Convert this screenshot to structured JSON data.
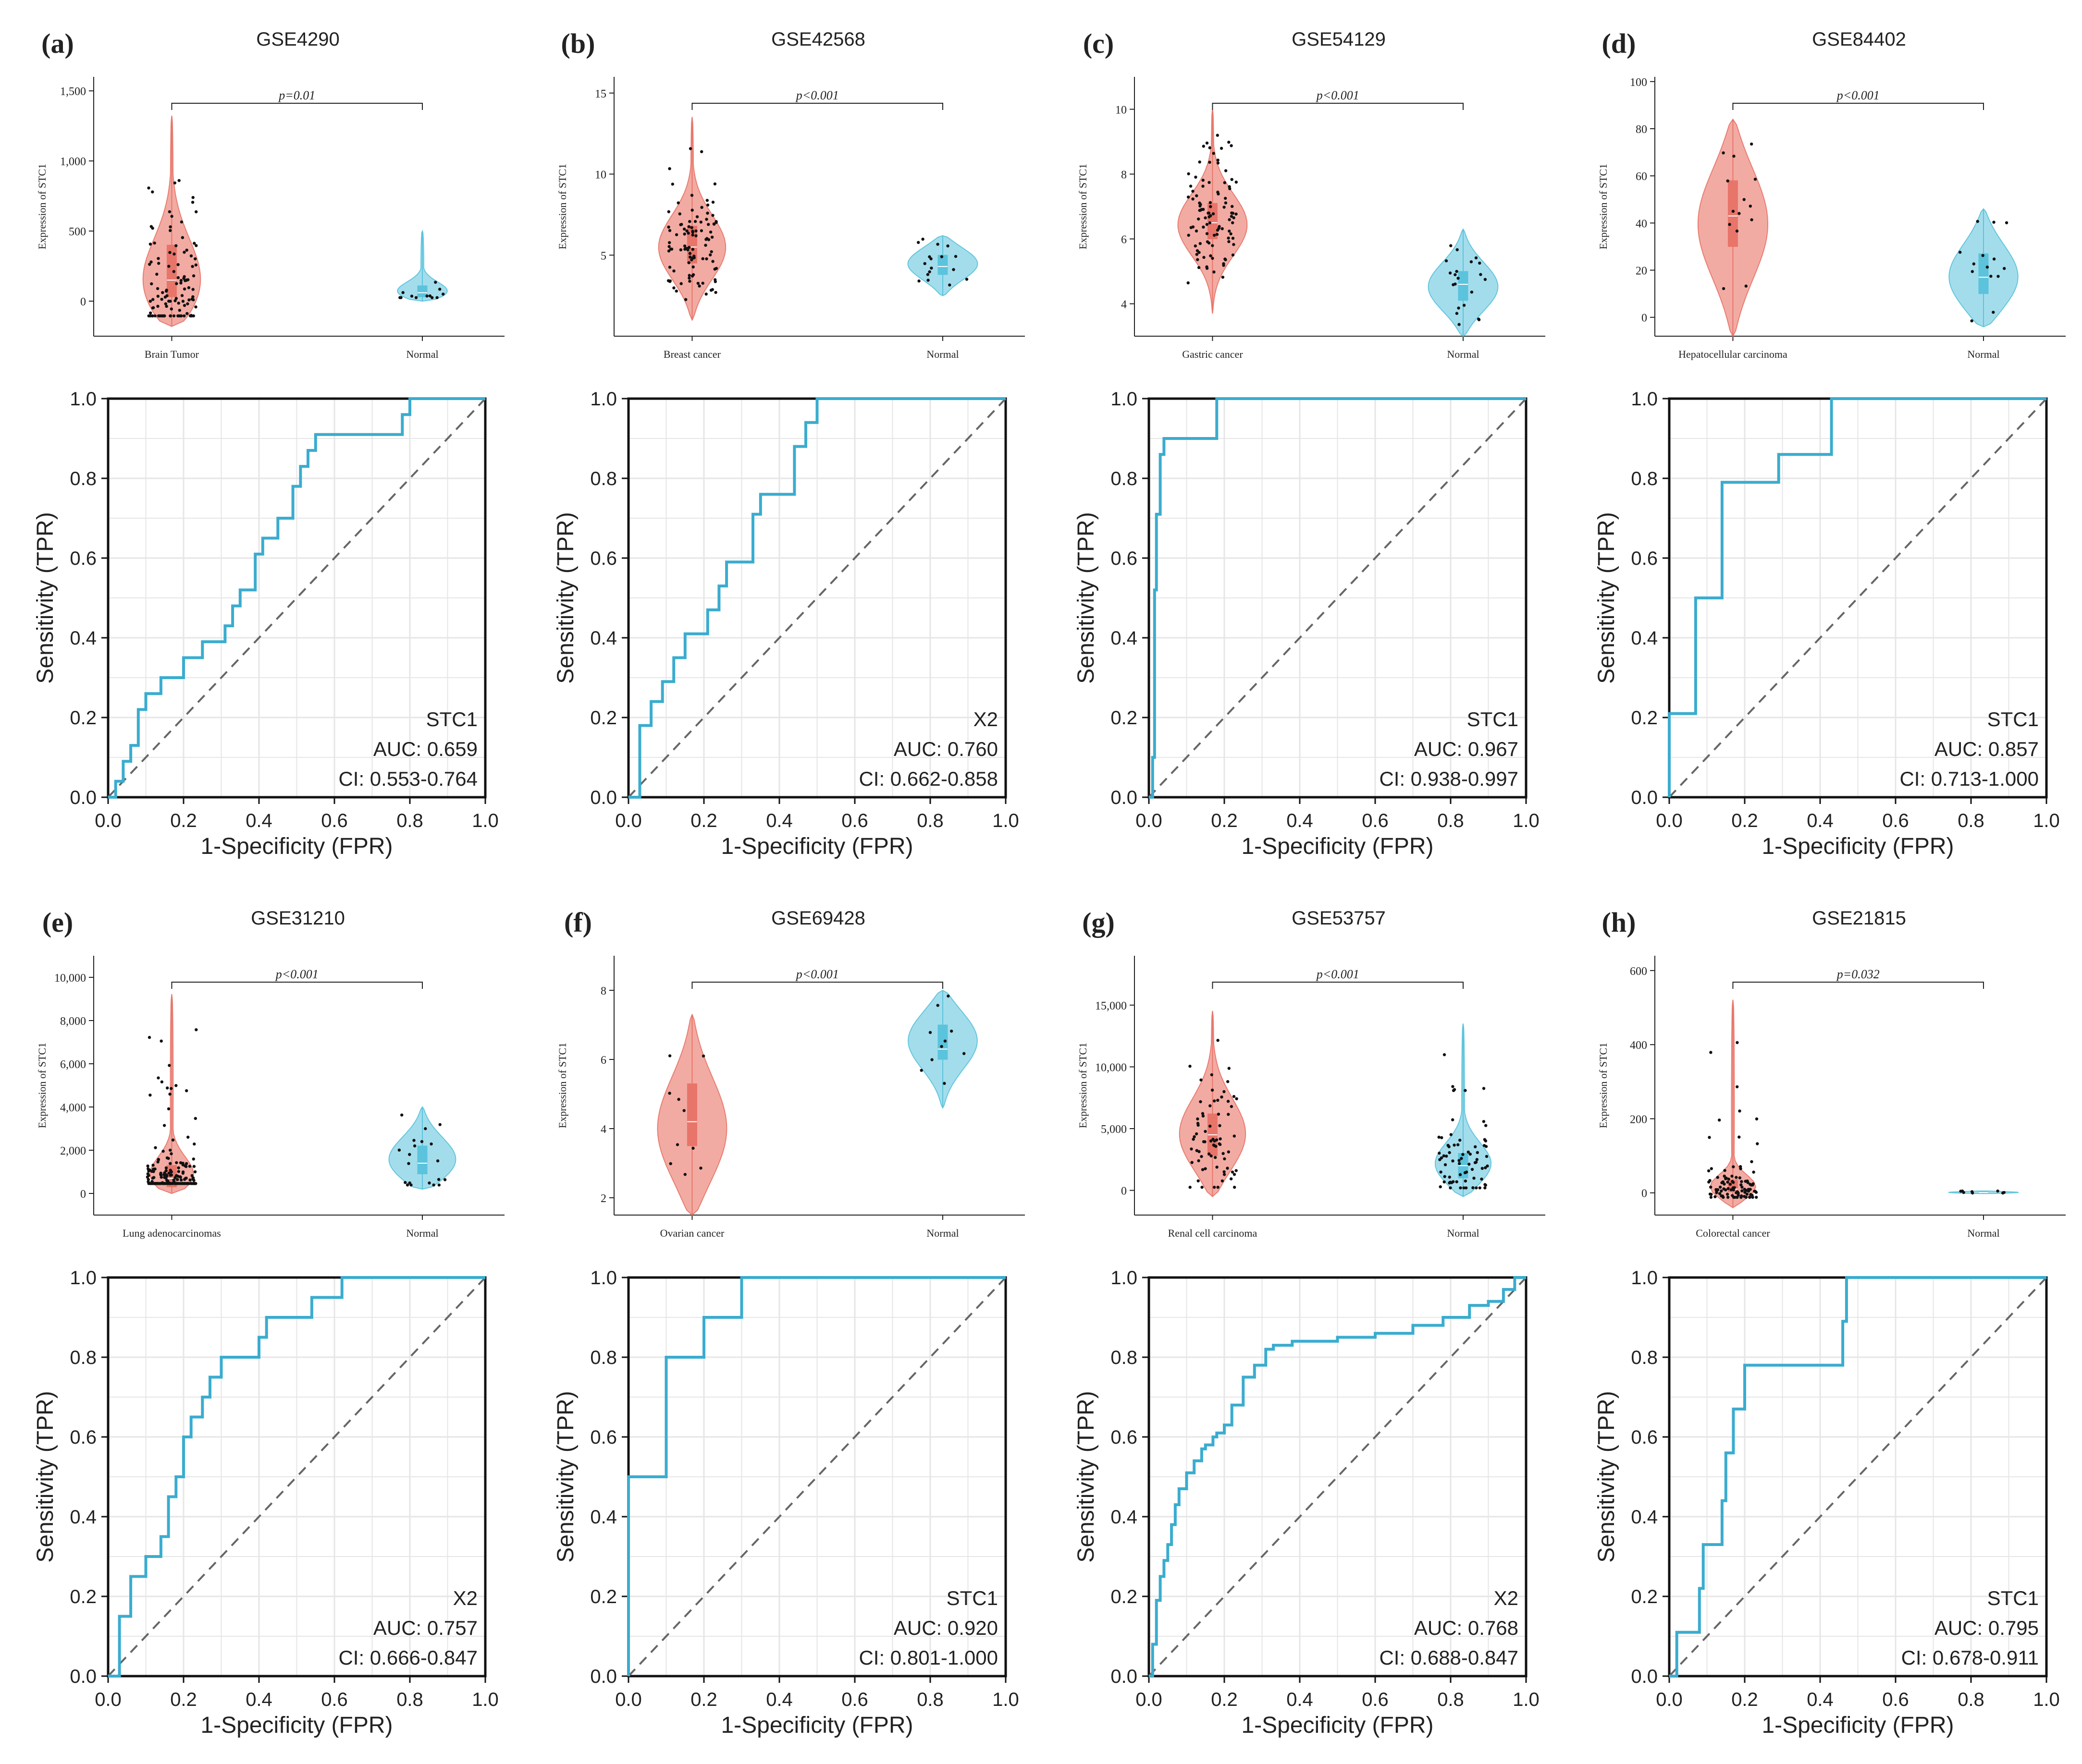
{
  "figure": {
    "colors": {
      "tumor": "#e8756a",
      "tumor_fill": "#f2a79f",
      "normal": "#5bc3dc",
      "normal_fill": "#9fdcec",
      "roc_line": "#3aaccf",
      "diagonal": "#666666",
      "axis": "#222222",
      "grid": "#e6e6e6"
    }
  },
  "chart_data": [
    {
      "panel": "(a)",
      "type": "violin",
      "title": "GSE4290",
      "ylabel": "Expression of STC1",
      "ylim": [
        -250,
        1600
      ],
      "yticks": [
        0,
        500,
        1000,
        1500
      ],
      "ytick_labels": [
        "0",
        "500",
        "1,000",
        "1,500"
      ],
      "categories": [
        "Brain Tumor",
        "Normal"
      ],
      "pvalue": "p=0.01",
      "violins": [
        {
          "group": "Brain Tumor",
          "min": -180,
          "max": 1320,
          "q1": 30,
          "median": 150,
          "q3": 400,
          "peak": 60,
          "n_points": 110
        },
        {
          "group": "Normal",
          "min": 0,
          "max": 500,
          "q1": 30,
          "median": 60,
          "q3": 110,
          "peak": 50,
          "n_points": 12
        }
      ]
    },
    {
      "panel": "(b)",
      "type": "violin",
      "title": "GSE42568",
      "ylabel": "Expression of STC1",
      "ylim": [
        0,
        16
      ],
      "yticks": [
        5,
        10,
        15
      ],
      "ytick_labels": [
        "5",
        "10",
        "15"
      ],
      "categories": [
        "Breast cancer",
        "Normal"
      ],
      "pvalue": "p<0.001",
      "violins": [
        {
          "group": "Breast cancer",
          "min": 1,
          "max": 13.5,
          "q1": 4.5,
          "median": 5.5,
          "q3": 6.8,
          "peak": 5.3,
          "n_points": 100
        },
        {
          "group": "Normal",
          "min": 2.5,
          "max": 6.2,
          "q1": 3.8,
          "median": 4.3,
          "q3": 5,
          "peak": 4.5,
          "n_points": 17
        }
      ]
    },
    {
      "panel": "(c)",
      "type": "violin",
      "title": "GSE54129",
      "ylabel": "Expression of STC1",
      "ylim": [
        3,
        11
      ],
      "yticks": [
        4,
        6,
        8,
        10
      ],
      "ytick_labels": [
        "4",
        "6",
        "8",
        "10"
      ],
      "categories": [
        "Gastric cancer",
        "Normal"
      ],
      "pvalue": "p<0.001",
      "violins": [
        {
          "group": "Gastric cancer",
          "min": 3.7,
          "max": 10,
          "q1": 6,
          "median": 6.5,
          "q3": 7.1,
          "peak": 6.4,
          "n_points": 100
        },
        {
          "group": "Normal",
          "min": 3,
          "max": 6.3,
          "q1": 4.1,
          "median": 4.6,
          "q3": 5,
          "peak": 4.5,
          "n_points": 21
        }
      ]
    },
    {
      "panel": "(d)",
      "type": "violin",
      "title": "GSE84402",
      "ylabel": "Expression of STC1",
      "ylim": [
        -8,
        102
      ],
      "yticks": [
        0,
        20,
        40,
        60,
        80,
        100
      ],
      "ytick_labels": [
        "0",
        "20",
        "40",
        "60",
        "80",
        "100"
      ],
      "categories": [
        "Hepatocellular carcinoma",
        "Normal"
      ],
      "pvalue": "p<0.001",
      "violins": [
        {
          "group": "Hepatocellular carcinoma",
          "min": -8,
          "max": 84,
          "q1": 30,
          "median": 43,
          "q3": 58,
          "peak": 40,
          "n_points": 14
        },
        {
          "group": "Normal",
          "min": -4,
          "max": 46,
          "q1": 10,
          "median": 17,
          "q3": 27,
          "peak": 16,
          "n_points": 14
        }
      ]
    },
    {
      "panel": "(e)",
      "type": "violin",
      "title": "GSE31210",
      "ylabel": "Expression of STC1",
      "ylim": [
        -1000,
        11000
      ],
      "yticks": [
        0,
        2000,
        4000,
        6000,
        8000,
        10000
      ],
      "ytick_labels": [
        "0",
        "2,000",
        "4,000",
        "6,000",
        "8,000",
        "10,000"
      ],
      "categories": [
        "Lung adenocarcinomas",
        "Normal"
      ],
      "pvalue": "p<0.001",
      "violins": [
        {
          "group": "Lung adenocarcinomas",
          "min": 0,
          "max": 9200,
          "q1": 300,
          "median": 700,
          "q3": 1300,
          "peak": 600,
          "n_points": 180
        },
        {
          "group": "Normal",
          "min": 200,
          "max": 4000,
          "q1": 900,
          "median": 1400,
          "q3": 2200,
          "peak": 1400,
          "n_points": 20
        }
      ]
    },
    {
      "panel": "(f)",
      "type": "violin",
      "title": "GSE69428",
      "ylabel": "Expression of STC1",
      "ylim": [
        1.5,
        9
      ],
      "yticks": [
        2,
        4,
        6,
        8
      ],
      "ytick_labels": [
        "2",
        "4",
        "6",
        "8"
      ],
      "categories": [
        "Ovarian cancer",
        "Normal"
      ],
      "pvalue": "p<0.001",
      "violins": [
        {
          "group": "Ovarian cancer",
          "min": 1.5,
          "max": 7.3,
          "q1": 3.5,
          "median": 4.2,
          "q3": 5.3,
          "peak": 3.9,
          "n_points": 10
        },
        {
          "group": "Normal",
          "min": 4.6,
          "max": 8,
          "q1": 6,
          "median": 6.3,
          "q3": 7,
          "peak": 6.6,
          "n_points": 10
        }
      ]
    },
    {
      "panel": "(g)",
      "type": "violin",
      "title": "GSE53757",
      "ylabel": "Expression of STC1",
      "ylim": [
        -2000,
        19000
      ],
      "yticks": [
        0,
        5000,
        10000,
        15000
      ],
      "ytick_labels": [
        "0",
        "5,000",
        "10,000",
        "15,000"
      ],
      "categories": [
        "Renal cell carcinoma",
        "Normal"
      ],
      "pvalue": "p<0.001",
      "violins": [
        {
          "group": "Renal cell carcinoma",
          "min": -500,
          "max": 14500,
          "q1": 2800,
          "median": 4500,
          "q3": 6200,
          "peak": 4200,
          "n_points": 72
        },
        {
          "group": "Normal",
          "min": -500,
          "max": 13500,
          "q1": 1000,
          "median": 2000,
          "q3": 3000,
          "peak": 1800,
          "n_points": 72
        }
      ]
    },
    {
      "panel": "(h)",
      "type": "violin",
      "title": "GSE21815",
      "ylabel": "Expression of STC1",
      "ylim": [
        -60,
        640
      ],
      "yticks": [
        0,
        200,
        400,
        600
      ],
      "ytick_labels": [
        "0",
        "200",
        "400",
        "600"
      ],
      "categories": [
        "Colorectal cancer",
        "Normal"
      ],
      "pvalue": "p=0.032",
      "violins": [
        {
          "group": "Colorectal cancer",
          "min": -40,
          "max": 520,
          "q1": 3,
          "median": 10,
          "q3": 35,
          "peak": 10,
          "n_points": 100
        },
        {
          "group": "Normal",
          "min": -2,
          "max": 5,
          "q1": 0,
          "median": 1,
          "q3": 3,
          "peak": 1,
          "n_points": 8
        }
      ]
    },
    {
      "panel": "(a)",
      "type": "roc",
      "xlabel": "1-Specificity (FPR)",
      "ylabel": "Sensitivity (TPR)",
      "xlim": [
        0,
        1
      ],
      "ylim": [
        0,
        1
      ],
      "ticks": [
        "0.0",
        "0.2",
        "0.4",
        "0.6",
        "0.8",
        "1.0"
      ],
      "legend": [
        "STC1",
        "AUC: 0.659",
        "CI: 0.553-0.764"
      ],
      "x": [
        0,
        0.02,
        0.02,
        0.04,
        0.04,
        0.06,
        0.06,
        0.08,
        0.08,
        0.1,
        0.1,
        0.14,
        0.14,
        0.2,
        0.2,
        0.25,
        0.25,
        0.31,
        0.31,
        0.33,
        0.33,
        0.35,
        0.35,
        0.39,
        0.39,
        0.41,
        0.41,
        0.45,
        0.45,
        0.49,
        0.49,
        0.51,
        0.51,
        0.53,
        0.53,
        0.55,
        0.55,
        0.78,
        0.78,
        0.8,
        0.8,
        1.0
      ],
      "y": [
        0,
        0,
        0.04,
        0.04,
        0.09,
        0.09,
        0.13,
        0.13,
        0.22,
        0.22,
        0.26,
        0.26,
        0.3,
        0.3,
        0.35,
        0.35,
        0.39,
        0.39,
        0.43,
        0.43,
        0.48,
        0.48,
        0.52,
        0.52,
        0.61,
        0.61,
        0.65,
        0.65,
        0.7,
        0.7,
        0.78,
        0.78,
        0.83,
        0.83,
        0.87,
        0.87,
        0.91,
        0.91,
        0.96,
        0.96,
        1.0,
        1.0
      ]
    },
    {
      "panel": "(b)",
      "type": "roc",
      "xlabel": "1-Specificity (FPR)",
      "ylabel": "Sensitivity (TPR)",
      "xlim": [
        0,
        1
      ],
      "ylim": [
        0,
        1
      ],
      "ticks": [
        "0.0",
        "0.2",
        "0.4",
        "0.6",
        "0.8",
        "1.0"
      ],
      "legend": [
        "X2",
        "AUC: 0.760",
        "CI: 0.662-0.858"
      ],
      "x": [
        0,
        0.03,
        0.03,
        0.06,
        0.06,
        0.09,
        0.09,
        0.12,
        0.12,
        0.15,
        0.15,
        0.21,
        0.21,
        0.24,
        0.24,
        0.26,
        0.26,
        0.33,
        0.33,
        0.35,
        0.35,
        0.44,
        0.44,
        0.47,
        0.47,
        0.5,
        0.5,
        1.0
      ],
      "y": [
        0,
        0,
        0.18,
        0.18,
        0.24,
        0.24,
        0.29,
        0.29,
        0.35,
        0.35,
        0.41,
        0.41,
        0.47,
        0.47,
        0.53,
        0.53,
        0.59,
        0.59,
        0.71,
        0.71,
        0.76,
        0.76,
        0.88,
        0.88,
        0.94,
        0.94,
        1.0,
        1.0
      ]
    },
    {
      "panel": "(c)",
      "type": "roc",
      "xlabel": "1-Specificity (FPR)",
      "ylabel": "Sensitivity (TPR)",
      "xlim": [
        0,
        1
      ],
      "ylim": [
        0,
        1
      ],
      "ticks": [
        "0.0",
        "0.2",
        "0.4",
        "0.6",
        "0.8",
        "1.0"
      ],
      "legend": [
        "STC1",
        "AUC: 0.967",
        "CI: 0.938-0.997"
      ],
      "x": [
        0,
        0.01,
        0.01,
        0.015,
        0.015,
        0.02,
        0.02,
        0.03,
        0.03,
        0.04,
        0.04,
        0.18,
        0.18,
        1.0
      ],
      "y": [
        0,
        0,
        0.1,
        0.1,
        0.52,
        0.52,
        0.71,
        0.71,
        0.86,
        0.86,
        0.9,
        0.9,
        1.0,
        1.0
      ]
    },
    {
      "panel": "(d)",
      "type": "roc",
      "xlabel": "1-Specificity (FPR)",
      "ylabel": "Sensitivity (TPR)",
      "xlim": [
        0,
        1
      ],
      "ylim": [
        0,
        1
      ],
      "ticks": [
        "0.0",
        "0.2",
        "0.4",
        "0.6",
        "0.8",
        "1.0"
      ],
      "legend": [
        "STC1",
        "AUC: 0.857",
        "CI: 0.713-1.000"
      ],
      "x": [
        0,
        0.0,
        0.0,
        0.07,
        0.07,
        0.14,
        0.14,
        0.29,
        0.29,
        0.43,
        0.43,
        1.0
      ],
      "y": [
        0,
        0,
        0.21,
        0.21,
        0.5,
        0.5,
        0.79,
        0.79,
        0.86,
        0.86,
        1.0,
        1.0
      ]
    },
    {
      "panel": "(e)",
      "type": "roc",
      "xlabel": "1-Specificity (FPR)",
      "ylabel": "Sensitivity (TPR)",
      "xlim": [
        0,
        1
      ],
      "ylim": [
        0,
        1
      ],
      "ticks": [
        "0.0",
        "0.2",
        "0.4",
        "0.6",
        "0.8",
        "1.0"
      ],
      "legend": [
        "X2",
        "AUC: 0.757",
        "CI: 0.666-0.847"
      ],
      "x": [
        0,
        0.03,
        0.03,
        0.06,
        0.06,
        0.1,
        0.1,
        0.14,
        0.14,
        0.16,
        0.16,
        0.18,
        0.18,
        0.2,
        0.2,
        0.22,
        0.22,
        0.25,
        0.25,
        0.27,
        0.27,
        0.3,
        0.3,
        0.4,
        0.4,
        0.42,
        0.42,
        0.54,
        0.54,
        0.62,
        0.62,
        0.64,
        0.64,
        1.0
      ],
      "y": [
        0,
        0,
        0.15,
        0.15,
        0.25,
        0.25,
        0.3,
        0.3,
        0.35,
        0.35,
        0.45,
        0.45,
        0.5,
        0.5,
        0.6,
        0.6,
        0.65,
        0.65,
        0.7,
        0.7,
        0.75,
        0.75,
        0.8,
        0.8,
        0.85,
        0.85,
        0.9,
        0.9,
        0.95,
        0.95,
        1.0,
        1.0,
        1.0,
        1.0
      ]
    },
    {
      "panel": "(f)",
      "type": "roc",
      "xlabel": "1-Specificity (FPR)",
      "ylabel": "Sensitivity (TPR)",
      "xlim": [
        0,
        1
      ],
      "ylim": [
        0,
        1
      ],
      "ticks": [
        "0.0",
        "0.2",
        "0.4",
        "0.6",
        "0.8",
        "1.0"
      ],
      "legend": [
        "STC1",
        "AUC: 0.920",
        "CI: 0.801-1.000"
      ],
      "x": [
        0,
        0.0,
        0.0,
        0.1,
        0.1,
        0.2,
        0.2,
        0.3,
        0.3,
        1.0
      ],
      "y": [
        0,
        0,
        0.5,
        0.5,
        0.8,
        0.8,
        0.9,
        0.9,
        1.0,
        1.0
      ]
    },
    {
      "panel": "(g)",
      "type": "roc",
      "xlabel": "1-Specificity (FPR)",
      "ylabel": "Sensitivity (TPR)",
      "xlim": [
        0,
        1
      ],
      "ylim": [
        0,
        1
      ],
      "ticks": [
        "0.0",
        "0.2",
        "0.4",
        "0.6",
        "0.8",
        "1.0"
      ],
      "legend": [
        "X2",
        "AUC: 0.768",
        "CI: 0.688-0.847"
      ],
      "x": [
        0,
        0.01,
        0.01,
        0.02,
        0.02,
        0.03,
        0.03,
        0.04,
        0.04,
        0.05,
        0.05,
        0.06,
        0.06,
        0.07,
        0.07,
        0.08,
        0.08,
        0.1,
        0.1,
        0.12,
        0.12,
        0.14,
        0.14,
        0.15,
        0.15,
        0.17,
        0.17,
        0.18,
        0.18,
        0.2,
        0.2,
        0.22,
        0.22,
        0.25,
        0.25,
        0.28,
        0.28,
        0.31,
        0.31,
        0.33,
        0.33,
        0.38,
        0.38,
        0.5,
        0.5,
        0.6,
        0.6,
        0.7,
        0.7,
        0.78,
        0.78,
        0.85,
        0.85,
        0.9,
        0.9,
        0.94,
        0.94,
        0.97,
        0.97,
        1.0
      ],
      "y": [
        0,
        0,
        0.08,
        0.08,
        0.19,
        0.19,
        0.25,
        0.25,
        0.29,
        0.29,
        0.33,
        0.33,
        0.38,
        0.38,
        0.43,
        0.43,
        0.47,
        0.47,
        0.51,
        0.51,
        0.54,
        0.54,
        0.57,
        0.57,
        0.58,
        0.58,
        0.6,
        0.6,
        0.61,
        0.61,
        0.63,
        0.63,
        0.68,
        0.68,
        0.75,
        0.75,
        0.78,
        0.78,
        0.82,
        0.82,
        0.83,
        0.83,
        0.84,
        0.84,
        0.85,
        0.85,
        0.86,
        0.86,
        0.88,
        0.88,
        0.9,
        0.9,
        0.93,
        0.93,
        0.94,
        0.94,
        0.97,
        0.97,
        1.0,
        1.0
      ]
    },
    {
      "panel": "(h)",
      "type": "roc",
      "xlabel": "1-Specificity (FPR)",
      "ylabel": "Sensitivity (TPR)",
      "xlim": [
        0,
        1
      ],
      "ylim": [
        0,
        1
      ],
      "ticks": [
        "0.0",
        "0.2",
        "0.4",
        "0.6",
        "0.8",
        "1.0"
      ],
      "legend": [
        "STC1",
        "AUC: 0.795",
        "CI: 0.678-0.911"
      ],
      "x": [
        0,
        0.02,
        0.02,
        0.08,
        0.08,
        0.09,
        0.09,
        0.14,
        0.14,
        0.15,
        0.15,
        0.17,
        0.17,
        0.2,
        0.2,
        0.23,
        0.23,
        0.46,
        0.46,
        0.47,
        0.47,
        1.0
      ],
      "y": [
        0,
        0,
        0.11,
        0.11,
        0.22,
        0.22,
        0.33,
        0.33,
        0.44,
        0.44,
        0.56,
        0.56,
        0.67,
        0.67,
        0.78,
        0.78,
        0.78,
        0.78,
        0.89,
        0.89,
        1.0,
        1.0
      ]
    }
  ]
}
